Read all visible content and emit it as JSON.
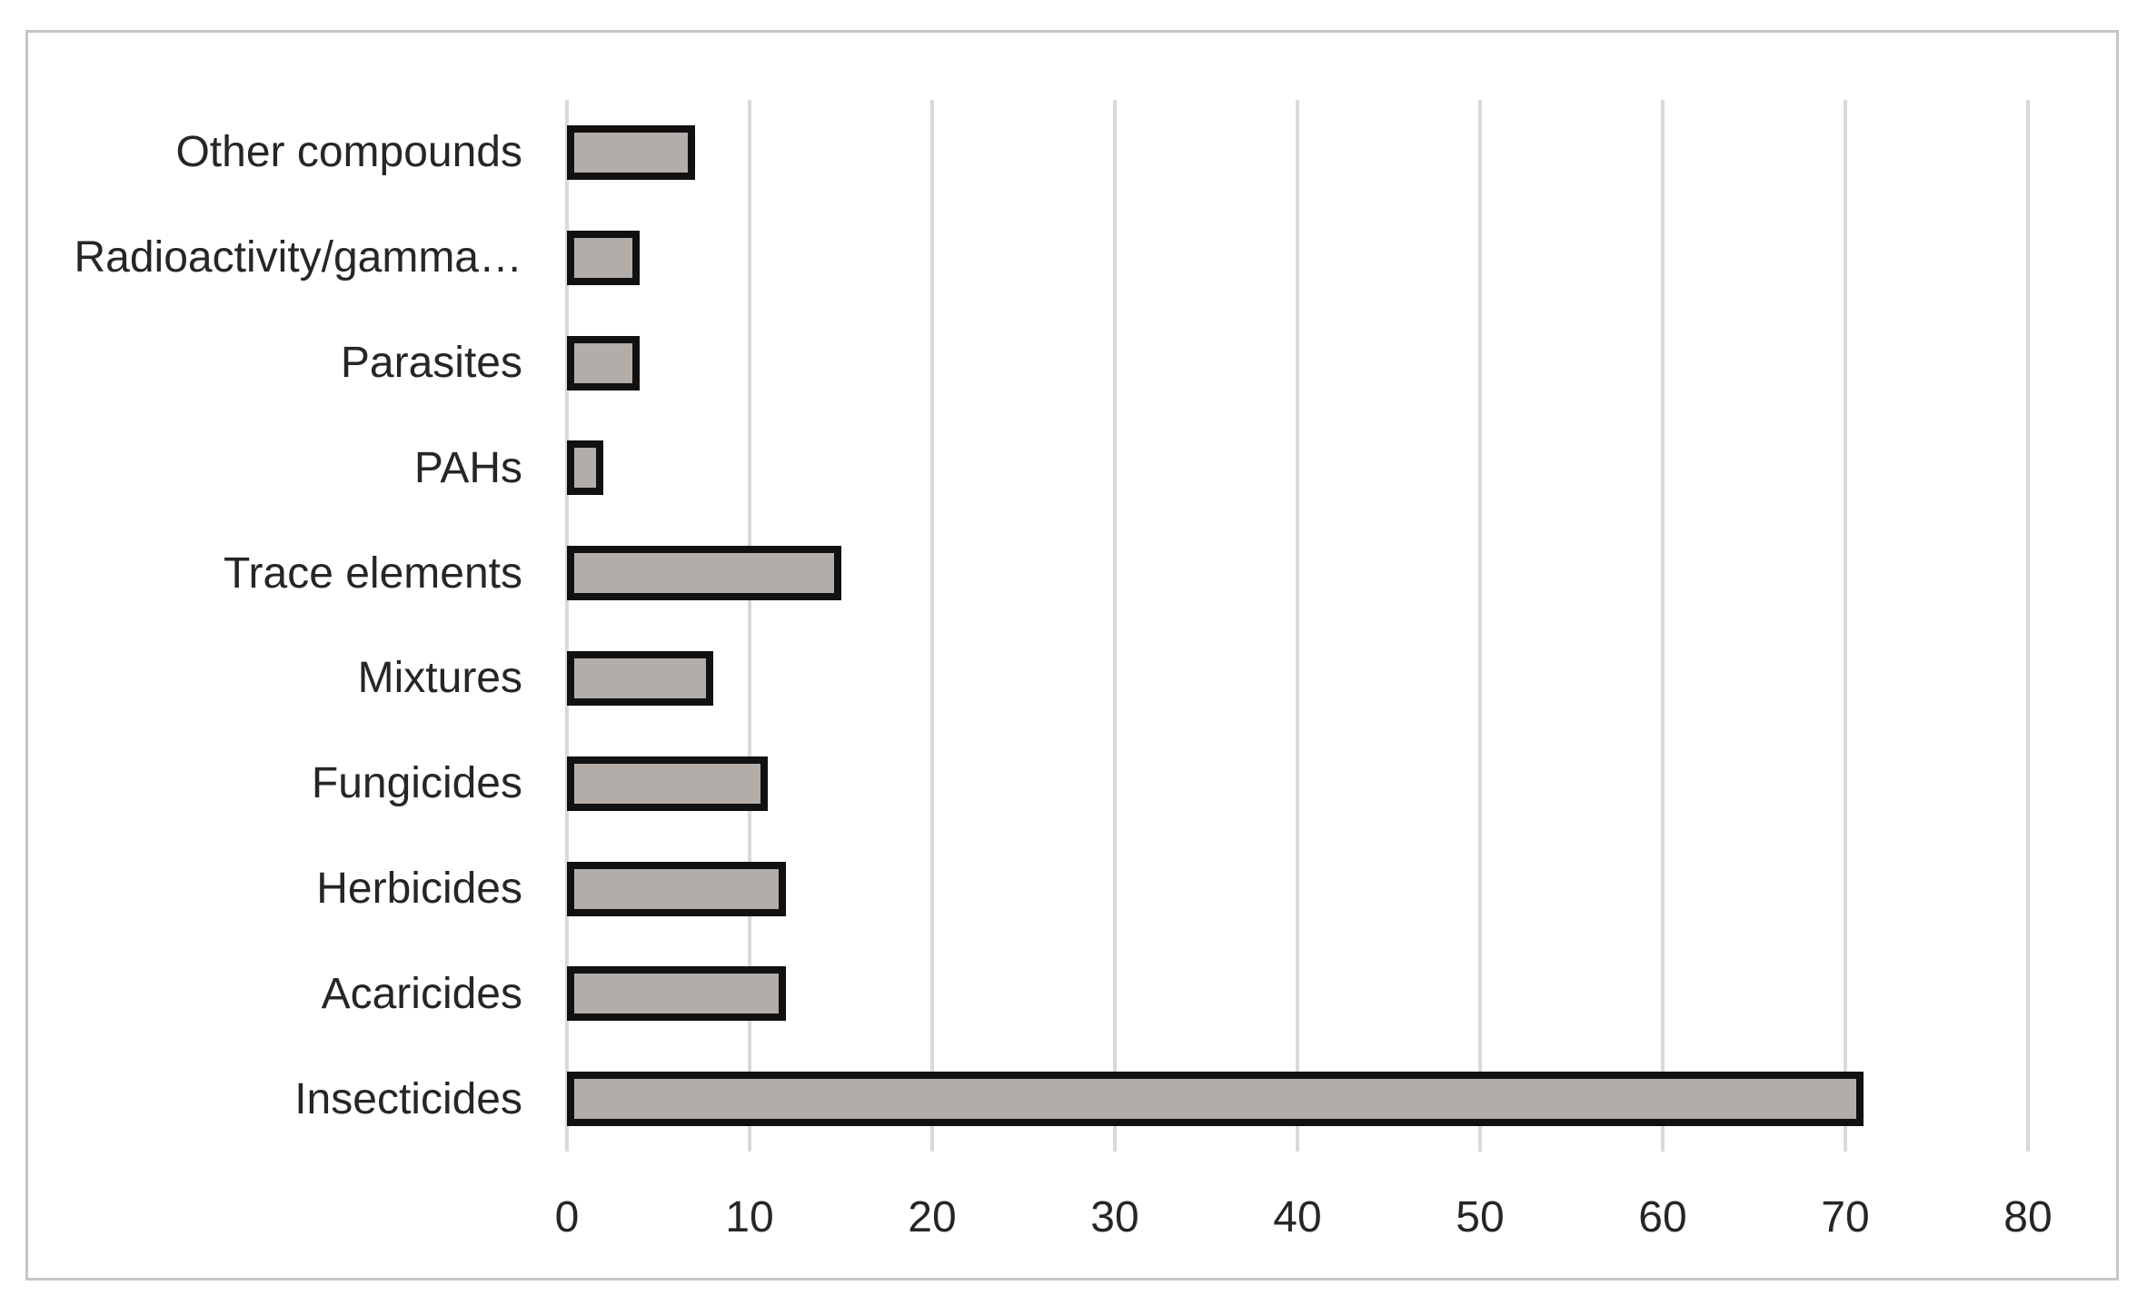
{
  "figure": {
    "background": "#ffffff",
    "border_color": "#c6c6c6"
  },
  "chart_data": {
    "type": "bar",
    "orientation": "horizontal",
    "title": "",
    "subtitle": "",
    "xlabel": "",
    "ylabel": "",
    "categories_top_to_bottom": [
      "Other compounds",
      "Radioactivity/gamma…",
      "Parasites",
      "PAHs",
      "Trace elements",
      "Mixtures",
      "Fungicides",
      "Herbicides",
      "Acaricides",
      "Insecticides"
    ],
    "values": [
      7,
      4,
      4,
      2,
      15,
      8,
      11,
      12,
      12,
      71
    ],
    "xlim": [
      0,
      80
    ],
    "xticks": [
      0,
      10,
      20,
      30,
      40,
      50,
      60,
      70,
      80
    ],
    "grid": "vertical",
    "legend": "none",
    "colors": {
      "bar_fill": "#b2ada9",
      "bar_border": "#111111",
      "gridline": "#d9d9d9",
      "text": "#262626"
    }
  }
}
